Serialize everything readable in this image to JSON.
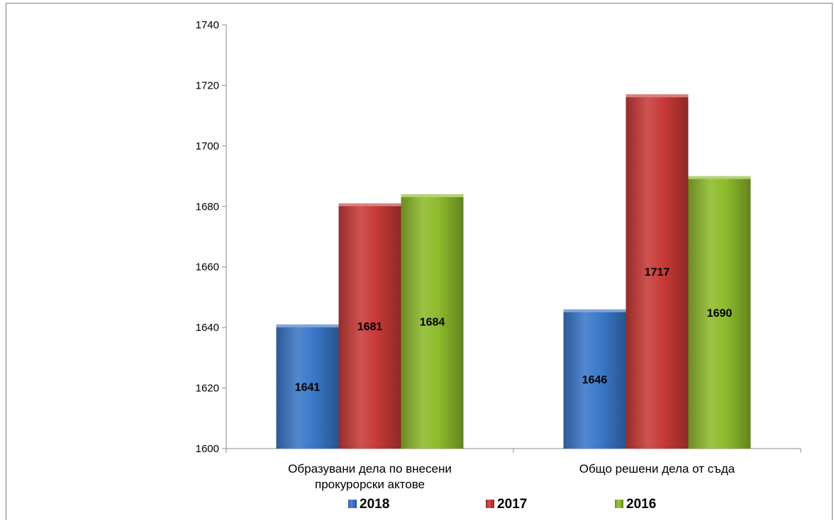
{
  "chart_data": {
    "type": "bar",
    "categories": [
      [
        "Образувани дела по внесени",
        "прокурорски актове"
      ],
      [
        "Общо решени дела от съда"
      ]
    ],
    "series": [
      {
        "name": "2018",
        "values": [
          1641,
          1646
        ],
        "color": "#3a78c9"
      },
      {
        "name": "2017",
        "values": [
          1681,
          1717
        ],
        "color": "#c83a38"
      },
      {
        "name": "2016",
        "values": [
          1684,
          1690
        ],
        "color": "#8dbb2c"
      }
    ],
    "ylim": [
      1600,
      1740
    ],
    "yticks": [
      1600,
      1620,
      1640,
      1660,
      1680,
      1700,
      1720,
      1740
    ],
    "legend": "bottom",
    "grid": false,
    "title": "",
    "xlabel": "",
    "ylabel": ""
  }
}
